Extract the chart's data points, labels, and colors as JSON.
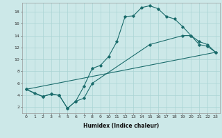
{
  "title": "",
  "xlabel": "Humidex (Indice chaleur)",
  "background_color": "#cce8e8",
  "line_color": "#1a6b6b",
  "grid_color": "#aad4d4",
  "xlim": [
    -0.5,
    23.5
  ],
  "ylim": [
    1.0,
    19.5
  ],
  "xticks": [
    0,
    1,
    2,
    3,
    4,
    5,
    6,
    7,
    8,
    9,
    10,
    11,
    12,
    13,
    14,
    15,
    16,
    17,
    18,
    19,
    20,
    21,
    22,
    23
  ],
  "yticks": [
    2,
    4,
    6,
    8,
    10,
    12,
    14,
    16,
    18
  ],
  "line1_x": [
    0,
    1,
    2,
    3,
    4,
    5,
    6,
    7,
    8,
    9,
    10,
    11,
    12,
    13,
    14,
    15,
    16,
    17,
    18,
    19,
    20,
    21,
    22,
    23
  ],
  "line1_y": [
    5.0,
    4.3,
    3.8,
    4.2,
    4.0,
    1.8,
    3.0,
    5.5,
    8.5,
    9.0,
    10.5,
    13.0,
    17.2,
    17.3,
    18.7,
    19.0,
    18.5,
    17.2,
    16.8,
    15.5,
    14.0,
    12.5,
    12.2,
    11.2
  ],
  "line2_x": [
    0,
    2,
    3,
    4,
    5,
    6,
    7,
    8,
    15,
    19,
    20,
    21,
    22,
    23
  ],
  "line2_y": [
    5.0,
    3.8,
    4.2,
    4.0,
    1.8,
    3.0,
    3.5,
    6.0,
    12.5,
    14.0,
    14.0,
    13.0,
    12.5,
    11.2
  ],
  "line3_x": [
    0,
    23
  ],
  "line3_y": [
    5.0,
    11.2
  ],
  "xlabel_fontsize": 5.5,
  "tick_fontsize": 4.5,
  "marker_size": 1.8,
  "line_width": 0.8
}
